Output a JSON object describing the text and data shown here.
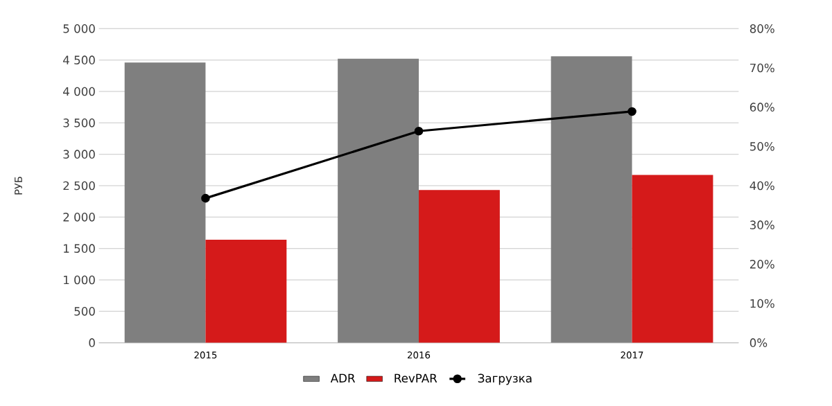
{
  "chart_data": {
    "type": "bar",
    "ylabel": "РУБ",
    "categories": [
      "2015",
      "2016",
      "2017"
    ],
    "series": [
      {
        "name": "ADR",
        "color": "#7f7f7f",
        "values": [
          4460,
          4520,
          4560
        ]
      },
      {
        "name": "RevPAR",
        "color": "#d51a1a",
        "values": [
          1640,
          2430,
          2670
        ]
      },
      {
        "name": "Загрузка",
        "type": "line",
        "axis": "y2",
        "color": "#000000",
        "values": [
          36.8,
          53.9,
          58.9
        ]
      }
    ],
    "ylim": [
      0,
      5000
    ],
    "yticks": [
      0,
      {
        "value": 500,
        "label": "500"
      },
      {
        "value": 1000,
        "label": "1 000"
      },
      {
        "value": 1500,
        "label": "1 500"
      },
      {
        "value": 2000,
        "label": "2 000"
      },
      {
        "value": 2500,
        "label": "2 500"
      },
      {
        "value": 3000,
        "label": "3 000"
      },
      {
        "value": 3500,
        "label": "3 500"
      },
      {
        "value": 4000,
        "label": "4 000"
      },
      {
        "value": 4500,
        "label": "4 500"
      },
      {
        "value": 5000,
        "label": "5 000"
      }
    ],
    "y2lim": [
      0,
      80
    ],
    "y2ticks": [
      {
        "value": 0,
        "label": "0%"
      },
      {
        "value": 10,
        "label": "10%"
      },
      {
        "value": 20,
        "label": "20%"
      },
      {
        "value": 30,
        "label": "30%"
      },
      {
        "value": 40,
        "label": "40%"
      },
      {
        "value": 50,
        "label": "50%"
      },
      {
        "value": 60,
        "label": "60%"
      },
      {
        "value": 70,
        "label": "70%"
      },
      {
        "value": 80,
        "label": "80%"
      }
    ],
    "grid": "y",
    "legend": "bottom",
    "marker": "circle"
  }
}
